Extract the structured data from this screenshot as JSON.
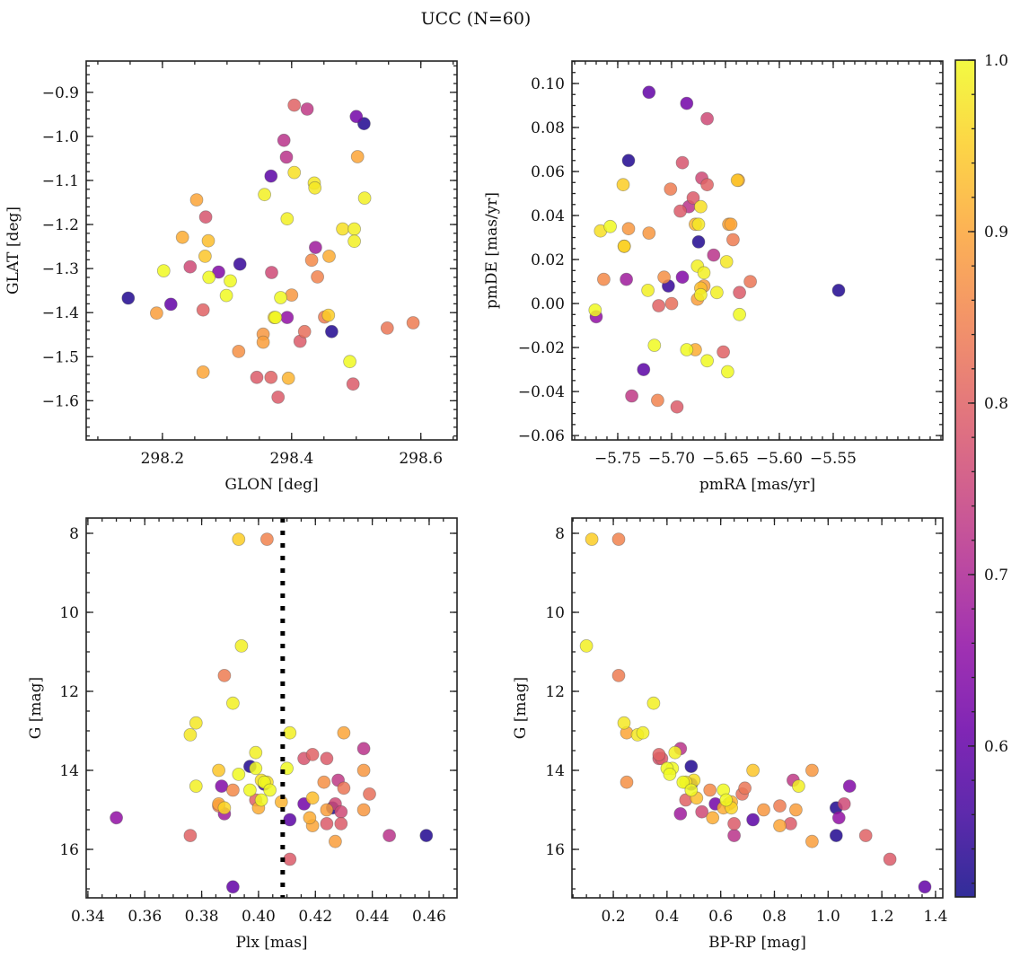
{
  "figure": {
    "title": "UCC (N=60)"
  },
  "chart_data": [
    {
      "id": "glon_glat",
      "type": "scatter",
      "title": "",
      "xlabel": "GLON [deg]",
      "ylabel": "GLAT [deg]",
      "xlim": [
        298.082,
        298.656
      ],
      "ylim": [
        -1.689,
        -0.829
      ],
      "xticks": [
        298.2,
        298.4,
        298.6
      ],
      "xtick_labels": [
        "298.2",
        "298.4",
        "298.6"
      ],
      "xminor": 0.05,
      "yticks": [
        -1.6,
        -1.5,
        -1.4,
        -1.3,
        -1.2,
        -1.1,
        -1.0,
        -0.9
      ],
      "ytick_labels": [
        "−1.6",
        "−1.5",
        "−1.4",
        "−1.3",
        "−1.2",
        "−1.1",
        "−1.0",
        "−0.9"
      ],
      "yminor": 0.02,
      "xfield": "glon",
      "yfield": "glat"
    },
    {
      "id": "pm",
      "type": "scatter",
      "title": "",
      "xlabel": "pmRA [mas/yr]",
      "ylabel": "pmDE [mas/yr]",
      "xlim": [
        -5.7925,
        -5.4483
      ],
      "ylim": [
        -0.062,
        0.1102
      ],
      "xticks": [
        -5.75,
        -5.7,
        -5.65,
        -5.6,
        -5.55
      ],
      "xtick_labels": [
        "−5.75",
        "−5.70",
        "−5.65",
        "−5.60",
        "−5.55"
      ],
      "xminor": 0.01,
      "yticks": [
        -0.06,
        -0.04,
        -0.02,
        0.0,
        0.02,
        0.04,
        0.06,
        0.08,
        0.1
      ],
      "ytick_labels": [
        "−0.06",
        "−0.04",
        "−0.02",
        "0.00",
        "0.02",
        "0.04",
        "0.06",
        "0.08",
        "0.10"
      ],
      "yminor": 0.005,
      "xfield": "pmra",
      "yfield": "pmde"
    },
    {
      "id": "plx_g",
      "type": "scatter",
      "title": "",
      "xlabel": "Plx [mas]",
      "ylabel": "G [mag]",
      "xlim": [
        0.3394,
        0.4698
      ],
      "ylim": [
        17.227,
        7.614
      ],
      "y_inverted": true,
      "xticks": [
        0.34,
        0.36,
        0.38,
        0.4,
        0.42,
        0.44,
        0.46
      ],
      "xtick_labels": [
        "0.34",
        "0.36",
        "0.38",
        "0.40",
        "0.42",
        "0.44",
        "0.46"
      ],
      "xminor": 0.005,
      "yticks": [
        8,
        10,
        12,
        14,
        16
      ],
      "ytick_labels": [
        "8",
        "10",
        "12",
        "14",
        "16"
      ],
      "yminor": 0.5,
      "xfield": "plx",
      "yfield": "g",
      "vline": {
        "x": 0.4085,
        "style": "dotted",
        "color": "#000000"
      }
    },
    {
      "id": "cmd",
      "type": "scatter",
      "title": "",
      "xlabel": "BP-RP [mag]",
      "ylabel": "G [mag]",
      "xlim": [
        0.046,
        1.427
      ],
      "ylim": [
        17.227,
        7.614
      ],
      "y_inverted": true,
      "xticks": [
        0.2,
        0.4,
        0.6,
        0.8,
        1.0,
        1.2,
        1.4
      ],
      "xtick_labels": [
        "0.2",
        "0.4",
        "0.6",
        "0.8",
        "1.0",
        "1.2",
        "1.4"
      ],
      "xminor": 0.05,
      "yticks": [
        8,
        10,
        12,
        14,
        16
      ],
      "ytick_labels": [
        "8",
        "10",
        "12",
        "14",
        "16"
      ],
      "yminor": 0.5,
      "xfield": "bprp",
      "yfield": "g"
    }
  ],
  "colorbar": {
    "cmap": "plasma",
    "range": [
      0.512,
      1.0
    ],
    "ticks": [
      0.6,
      0.7,
      0.8,
      0.9,
      1.0
    ],
    "tick_labels": [
      "0.6",
      "0.7",
      "0.8",
      "0.9",
      "1.0"
    ],
    "minor": 0.02
  },
  "stars": [
    {
      "glon": 298.147,
      "glat": -1.367,
      "pmra": -5.74,
      "pmde": 0.065,
      "plx": 0.459,
      "g": 15.65,
      "bprp": 1.03,
      "p": 0.53
    },
    {
      "glon": 298.213,
      "glat": -1.381,
      "pmra": -5.721,
      "pmde": 0.096,
      "plx": 0.391,
      "g": 16.95,
      "bprp": 1.36,
      "p": 0.6
    },
    {
      "glon": 298.462,
      "glat": -1.443,
      "pmra": -5.675,
      "pmde": 0.028,
      "plx": 0.397,
      "g": 13.9,
      "bprp": 0.49,
      "p": 0.53
    },
    {
      "glon": 298.512,
      "glat": -0.971,
      "pmra": -5.545,
      "pmde": 0.006,
      "plx": 0.426,
      "g": 14.95,
      "bprp": 1.03,
      "p": 0.53
    },
    {
      "glon": 298.32,
      "glat": -1.29,
      "pmra": -5.703,
      "pmde": 0.008,
      "plx": 0.402,
      "g": 14.35,
      "bprp": 0.49,
      "p": 0.55
    },
    {
      "glon": 298.368,
      "glat": -1.09,
      "pmra": -5.726,
      "pmde": -0.03,
      "plx": 0.411,
      "g": 15.25,
      "bprp": 0.72,
      "p": 0.59
    },
    {
      "glon": 298.5,
      "glat": -0.955,
      "pmra": -5.686,
      "pmde": 0.091,
      "plx": 0.416,
      "g": 14.85,
      "bprp": 0.58,
      "p": 0.62
    },
    {
      "glon": 298.287,
      "glat": -1.308,
      "pmra": -5.69,
      "pmde": 0.012,
      "plx": 0.387,
      "g": 14.4,
      "bprp": 1.08,
      "p": 0.64
    },
    {
      "glon": 298.393,
      "glat": -1.411,
      "pmra": -5.77,
      "pmde": -0.006,
      "plx": 0.35,
      "g": 15.2,
      "bprp": 1.04,
      "p": 0.66
    },
    {
      "glon": 298.437,
      "glat": -1.252,
      "pmra": -5.742,
      "pmde": 0.011,
      "plx": 0.388,
      "g": 15.1,
      "bprp": 0.45,
      "p": 0.68
    },
    {
      "glon": 298.388,
      "glat": -1.009,
      "pmra": -5.661,
      "pmde": 0.022,
      "plx": 0.446,
      "g": 15.65,
      "bprp": 0.65,
      "p": 0.72
    },
    {
      "glon": 298.392,
      "glat": -1.047,
      "pmra": -5.684,
      "pmde": 0.044,
      "plx": 0.437,
      "g": 13.45,
      "bprp": 0.45,
      "p": 0.72
    },
    {
      "glon": 298.424,
      "glat": -0.938,
      "pmra": -5.737,
      "pmde": -0.042,
      "plx": 0.428,
      "g": 14.25,
      "bprp": 0.87,
      "p": 0.73
    },
    {
      "glon": 298.243,
      "glat": -1.296,
      "pmra": -5.667,
      "pmde": 0.084,
      "plx": 0.427,
      "g": 14.85,
      "bprp": 1.06,
      "p": 0.76
    },
    {
      "glon": 298.369,
      "glat": -1.309,
      "pmra": -5.672,
      "pmde": 0.057,
      "plx": 0.429,
      "g": 15.05,
      "bprp": 0.53,
      "p": 0.76
    },
    {
      "glon": 298.267,
      "glat": -1.183,
      "pmra": -5.69,
      "pmde": 0.064,
      "plx": 0.416,
      "g": 13.7,
      "bprp": 0.37,
      "p": 0.78
    },
    {
      "glon": 298.379,
      "glat": -1.592,
      "pmra": -5.695,
      "pmde": -0.047,
      "plx": 0.411,
      "g": 16.25,
      "bprp": 1.23,
      "p": 0.79
    },
    {
      "glon": 298.346,
      "glat": -1.547,
      "pmra": -5.692,
      "pmde": 0.042,
      "plx": 0.424,
      "g": 13.7,
      "bprp": 0.38,
      "p": 0.79
    },
    {
      "glon": 298.368,
      "glat": -1.547,
      "pmra": -5.712,
      "pmde": -0.001,
      "plx": 0.419,
      "g": 13.6,
      "bprp": 0.37,
      "p": 0.8
    },
    {
      "glon": 298.263,
      "glat": -1.394,
      "pmra": -5.667,
      "pmde": 0.054,
      "plx": 0.376,
      "g": 15.65,
      "bprp": 1.14,
      "p": 0.8
    },
    {
      "glon": 298.495,
      "glat": -1.562,
      "pmra": -5.637,
      "pmde": 0.005,
      "plx": 0.429,
      "g": 15.35,
      "bprp": 0.65,
      "p": 0.79
    },
    {
      "glon": 298.413,
      "glat": -1.465,
      "pmra": -5.68,
      "pmde": 0.048,
      "plx": 0.424,
      "g": 15.35,
      "bprp": 0.86,
      "p": 0.79
    },
    {
      "glon": 298.404,
      "glat": -0.929,
      "pmra": -5.652,
      "pmde": -0.022,
      "plx": 0.399,
      "g": 14.75,
      "bprp": 0.47,
      "p": 0.8
    },
    {
      "glon": 298.42,
      "glat": -1.443,
      "pmra": -5.7,
      "pmde": 0.0,
      "plx": 0.439,
      "g": 14.6,
      "bprp": 0.68,
      "p": 0.82
    },
    {
      "glon": 298.548,
      "glat": -1.435,
      "pmra": -5.627,
      "pmde": 0.01,
      "plx": 0.43,
      "g": 14.45,
      "bprp": 0.69,
      "p": 0.83
    },
    {
      "glon": 298.588,
      "glat": -1.423,
      "pmra": -5.643,
      "pmde": 0.029,
      "plx": 0.386,
      "g": 14.9,
      "bprp": 0.82,
      "p": 0.84
    },
    {
      "glon": 298.451,
      "glat": -1.41,
      "pmra": -5.701,
      "pmde": 0.052,
      "plx": 0.388,
      "g": 11.6,
      "bprp": 0.22,
      "p": 0.84
    },
    {
      "glon": 298.44,
      "glat": -1.319,
      "pmra": -5.713,
      "pmde": -0.044,
      "plx": 0.403,
      "g": 8.15,
      "bprp": 0.22,
      "p": 0.85
    },
    {
      "glon": 298.431,
      "glat": -1.281,
      "pmra": -5.763,
      "pmde": 0.011,
      "plx": 0.391,
      "g": 14.5,
      "bprp": 0.56,
      "p": 0.86
    },
    {
      "glon": 298.318,
      "glat": -1.488,
      "pmra": -5.707,
      "pmde": 0.012,
      "plx": 0.423,
      "g": 14.3,
      "bprp": 0.25,
      "p": 0.87
    },
    {
      "glon": 298.356,
      "glat": -1.449,
      "pmra": -5.721,
      "pmde": 0.032,
      "plx": 0.437,
      "g": 14.0,
      "bprp": 0.94,
      "p": 0.88
    },
    {
      "glon": 298.4,
      "glat": -1.36,
      "pmra": -5.74,
      "pmde": 0.034,
      "plx": 0.437,
      "g": 15.0,
      "bprp": 0.76,
      "p": 0.88
    },
    {
      "glon": 298.356,
      "glat": -1.467,
      "pmra": -5.676,
      "pmde": 0.002,
      "plx": 0.427,
      "g": 15.8,
      "bprp": 0.94,
      "p": 0.89
    },
    {
      "glon": 298.191,
      "glat": -1.401,
      "pmra": -5.67,
      "pmde": 0.008,
      "plx": 0.424,
      "g": 15.0,
      "bprp": 0.88,
      "p": 0.89
    },
    {
      "glon": 298.263,
      "glat": -1.535,
      "pmra": -5.647,
      "pmde": 0.036,
      "plx": 0.43,
      "g": 13.05,
      "bprp": 0.25,
      "p": 0.9
    },
    {
      "glon": 298.253,
      "glat": -1.144,
      "pmra": -5.645,
      "pmde": 0.036,
      "plx": 0.386,
      "g": 14.85,
      "bprp": 0.63,
      "p": 0.9
    },
    {
      "glon": 298.502,
      "glat": -1.046,
      "pmra": -5.638,
      "pmde": 0.056,
      "plx": 0.419,
      "g": 15.4,
      "bprp": 0.82,
      "p": 0.9
    },
    {
      "glon": 298.458,
      "glat": -1.272,
      "pmra": -5.678,
      "pmde": -0.021,
      "plx": 0.4,
      "g": 14.95,
      "bprp": 0.61,
      "p": 0.91
    },
    {
      "glon": 298.231,
      "glat": -1.229,
      "pmra": -5.744,
      "pmde": 0.026,
      "plx": 0.418,
      "g": 15.2,
      "bprp": 0.57,
      "p": 0.91
    },
    {
      "glon": 298.395,
      "glat": -1.549,
      "pmra": -5.678,
      "pmde": 0.036,
      "plx": 0.408,
      "g": 14.8,
      "bprp": 0.64,
      "p": 0.92
    },
    {
      "glon": 298.271,
      "glat": -1.237,
      "pmra": -5.673,
      "pmde": 0.007,
      "plx": 0.419,
      "g": 14.7,
      "bprp": 0.51,
      "p": 0.93
    },
    {
      "glon": 298.266,
      "glat": -1.272,
      "pmra": -5.639,
      "pmde": 0.056,
      "plx": 0.386,
      "g": 14.0,
      "bprp": 0.72,
      "p": 0.94
    },
    {
      "glon": 298.457,
      "glat": -1.406,
      "pmra": -5.745,
      "pmde": 0.054,
      "plx": 0.393,
      "g": 8.15,
      "bprp": 0.12,
      "p": 0.95
    },
    {
      "glon": 298.373,
      "glat": -1.411,
      "pmra": -5.744,
      "pmde": 0.026,
      "plx": 0.388,
      "g": 14.95,
      "bprp": 0.64,
      "p": 0.96
    },
    {
      "glon": 298.404,
      "glat": -1.082,
      "pmra": -5.766,
      "pmde": 0.033,
      "plx": 0.401,
      "g": 14.25,
      "bprp": 0.5,
      "p": 0.97
    },
    {
      "glon": 298.479,
      "glat": -1.21,
      "pmra": -5.673,
      "pmde": 0.044,
      "plx": 0.403,
      "g": 14.3,
      "bprp": 0.47,
      "p": 0.97
    },
    {
      "glon": 298.435,
      "glat": -1.106,
      "pmra": -5.675,
      "pmde": 0.036,
      "plx": 0.376,
      "g": 13.1,
      "bprp": 0.29,
      "p": 0.98
    },
    {
      "glon": 298.436,
      "glat": -1.117,
      "pmra": -5.649,
      "pmde": 0.019,
      "plx": 0.378,
      "g": 12.8,
      "bprp": 0.24,
      "p": 0.98
    },
    {
      "glon": 298.497,
      "glat": -1.21,
      "pmra": -5.676,
      "pmde": 0.017,
      "plx": 0.378,
      "g": 14.4,
      "bprp": 0.89,
      "p": 0.99
    },
    {
      "glon": 298.497,
      "glat": -1.238,
      "pmra": -5.67,
      "pmde": 0.014,
      "plx": 0.391,
      "g": 12.3,
      "bprp": 0.35,
      "p": 0.99
    },
    {
      "glon": 298.513,
      "glat": -1.14,
      "pmra": -5.722,
      "pmde": 0.006,
      "plx": 0.394,
      "g": 10.85,
      "bprp": 0.1,
      "p": 0.99
    },
    {
      "glon": 298.358,
      "glat": -1.132,
      "pmra": -5.658,
      "pmde": 0.005,
      "plx": 0.411,
      "g": 13.05,
      "bprp": 0.31,
      "p": 0.99
    },
    {
      "glon": 298.393,
      "glat": -1.187,
      "pmra": -5.673,
      "pmde": 0.004,
      "plx": 0.399,
      "g": 13.55,
      "bprp": 0.43,
      "p": 0.99
    },
    {
      "glon": 298.202,
      "glat": -1.305,
      "pmra": -5.757,
      "pmde": 0.035,
      "plx": 0.399,
      "g": 13.95,
      "bprp": 0.42,
      "p": 1.0
    },
    {
      "glon": 298.272,
      "glat": -1.32,
      "pmra": -5.637,
      "pmde": -0.005,
      "plx": 0.41,
      "g": 13.95,
      "bprp": 0.4,
      "p": 1.0
    },
    {
      "glon": 298.305,
      "glat": -1.328,
      "pmra": -5.716,
      "pmde": -0.019,
      "plx": 0.393,
      "g": 14.1,
      "bprp": 0.41,
      "p": 1.0
    },
    {
      "glon": 298.299,
      "glat": -1.361,
      "pmra": -5.686,
      "pmde": -0.021,
      "plx": 0.402,
      "g": 14.3,
      "bprp": 0.46,
      "p": 1.0
    },
    {
      "glon": 298.383,
      "glat": -1.366,
      "pmra": -5.667,
      "pmde": -0.026,
      "plx": 0.404,
      "g": 14.5,
      "bprp": 0.49,
      "p": 1.0
    },
    {
      "glon": 298.49,
      "glat": -1.511,
      "pmra": -5.648,
      "pmde": -0.031,
      "plx": 0.397,
      "g": 14.5,
      "bprp": 0.61,
      "p": 1.0
    },
    {
      "glon": 298.375,
      "glat": -1.411,
      "pmra": -5.771,
      "pmde": -0.003,
      "plx": 0.401,
      "g": 14.75,
      "bprp": 0.62,
      "p": 1.0
    }
  ]
}
